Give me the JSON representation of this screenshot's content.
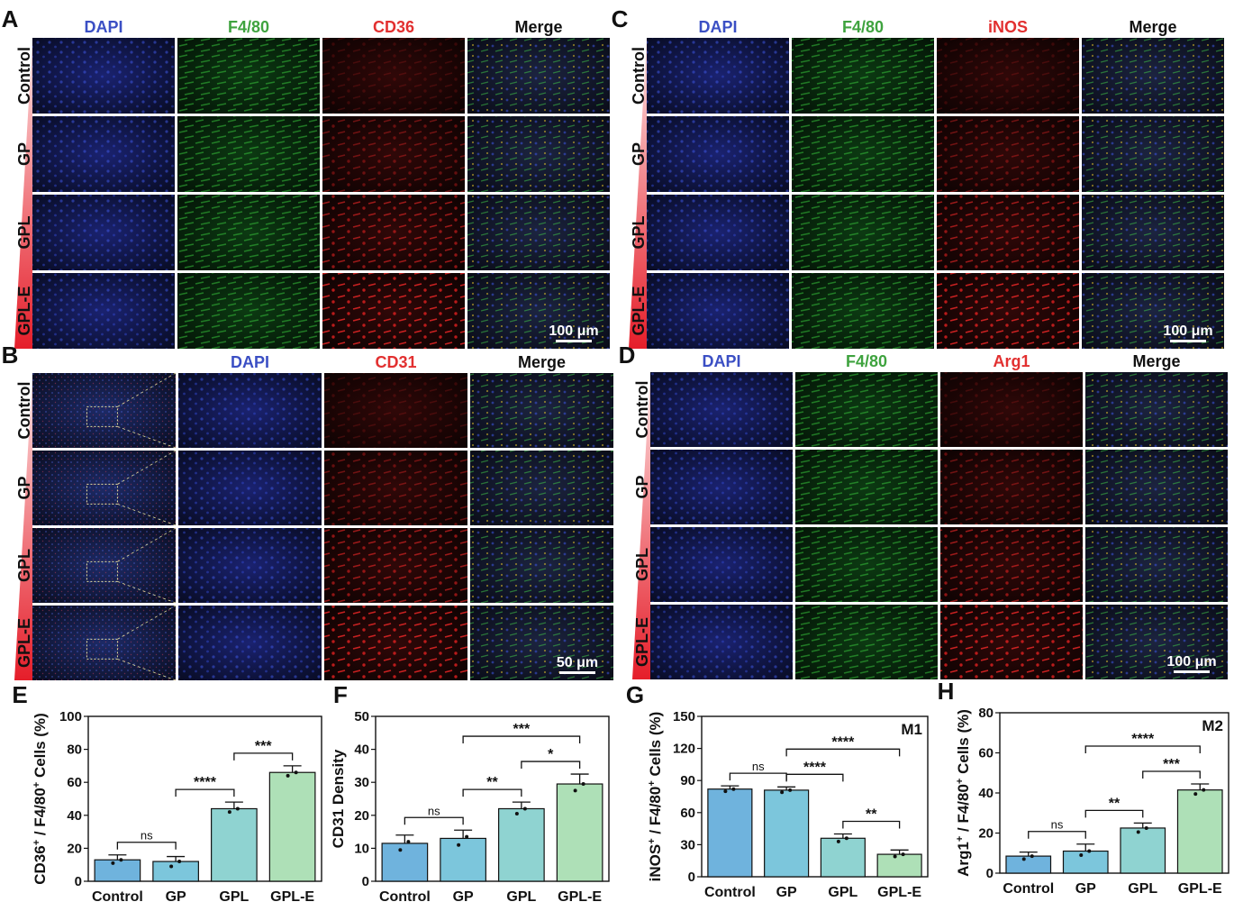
{
  "colors": {
    "dapi": "#3b4fc4",
    "f480": "#3fa33f",
    "red": "#e23030",
    "merge": "#111111",
    "bars": [
      "#6fb3dd",
      "#7cc6dc",
      "#8fd3d1",
      "#aee0b7"
    ]
  },
  "microscopy": [
    {
      "panel": "A",
      "columns": [
        "DAPI",
        "F4/80",
        "CD36",
        "Merge"
      ],
      "column_colors": [
        "dapi",
        "f480",
        "red",
        "merge"
      ],
      "rows": [
        "Control",
        "GP",
        "GPL",
        "GPL-E"
      ],
      "scale_bar": "100 μm",
      "kind": "std",
      "ch": [
        "blue",
        "green",
        "red",
        "merge"
      ]
    },
    {
      "panel": "B",
      "columns": [
        "",
        "DAPI",
        "CD31",
        "Merge"
      ],
      "column_colors": [
        "merge",
        "dapi",
        "red",
        "merge"
      ],
      "rows": [
        "Control",
        "GP",
        "GPL",
        "GPL-E"
      ],
      "scale_bar": "50 μm",
      "kind": "overview",
      "ch": [
        "overview",
        "blue",
        "red",
        "merge"
      ]
    },
    {
      "panel": "C",
      "columns": [
        "DAPI",
        "F4/80",
        "iNOS",
        "Merge"
      ],
      "column_colors": [
        "dapi",
        "f480",
        "red",
        "merge"
      ],
      "rows": [
        "Control",
        "GP",
        "GPL",
        "GPL-E"
      ],
      "scale_bar": "100 μm",
      "kind": "std",
      "ch": [
        "blue",
        "green",
        "red",
        "merge"
      ]
    },
    {
      "panel": "D",
      "columns": [
        "DAPI",
        "F4/80",
        "Arg1",
        "Merge"
      ],
      "column_colors": [
        "dapi",
        "f480",
        "red",
        "merge"
      ],
      "rows": [
        "Control",
        "GP",
        "GPL",
        "GPL-E"
      ],
      "scale_bar": "100 μm",
      "kind": "std",
      "ch": [
        "blue",
        "green",
        "red",
        "merge"
      ]
    }
  ],
  "chart_data": [
    {
      "panel": "E",
      "type": "bar",
      "categories": [
        "Control",
        "GP",
        "GPL",
        "GPL-E"
      ],
      "values": [
        13,
        12,
        44,
        66
      ],
      "errors": [
        3,
        3,
        4,
        4
      ],
      "points": [
        [
          11,
          13
        ],
        [
          9,
          12
        ],
        [
          42,
          44
        ],
        [
          64,
          66
        ]
      ],
      "ylabel_main": "CD36",
      "ylabel_rest": " / F4/80",
      "ylabel_tail": " Cells (%)",
      "ylim": [
        0,
        100
      ],
      "yticks": [
        "0",
        "20",
        "40",
        "60",
        "80",
        "100"
      ],
      "tag": "",
      "comparisons": [
        {
          "from": 0,
          "to": 1,
          "label": "ns"
        },
        {
          "from": 1,
          "to": 2,
          "label": "****"
        },
        {
          "from": 2,
          "to": 3,
          "label": "***"
        }
      ]
    },
    {
      "panel": "F",
      "type": "bar",
      "categories": [
        "Control",
        "GP",
        "GPL",
        "GPL-E"
      ],
      "values": [
        11.5,
        13,
        22,
        29.5
      ],
      "errors": [
        2.5,
        2.5,
        2,
        3
      ],
      "points": [
        [
          9.5,
          12
        ],
        [
          11,
          13.5
        ],
        [
          20.5,
          22
        ],
        [
          27.5,
          29.5
        ]
      ],
      "ylabel_main": "CD31 Density",
      "ylabel_rest": "",
      "ylabel_tail": "",
      "ylim": [
        0,
        50
      ],
      "yticks": [
        "0",
        "10",
        "20",
        "30",
        "40",
        "50"
      ],
      "tag": "",
      "comparisons": [
        {
          "from": 0,
          "to": 1,
          "label": "ns"
        },
        {
          "from": 1,
          "to": 2,
          "label": "**"
        },
        {
          "from": 2,
          "to": 3,
          "label": "*"
        },
        {
          "from": 1,
          "to": 3,
          "label": "***"
        }
      ]
    },
    {
      "panel": "G",
      "type": "bar",
      "categories": [
        "Control",
        "GP",
        "GPL",
        "GPL-E"
      ],
      "values": [
        82,
        81,
        36,
        21
      ],
      "errors": [
        3,
        3,
        4,
        4
      ],
      "points": [
        [
          80,
          82
        ],
        [
          79,
          81
        ],
        [
          33,
          36
        ],
        [
          19,
          21
        ]
      ],
      "ylabel_main": "iNOS",
      "ylabel_rest": " / F4/80",
      "ylabel_tail": " Cells (%)",
      "ylim": [
        0,
        150
      ],
      "yticks": [
        "0",
        "30",
        "60",
        "90",
        "120",
        "150"
      ],
      "tag": "M1",
      "comparisons": [
        {
          "from": 0,
          "to": 1,
          "label": "ns"
        },
        {
          "from": 1,
          "to": 2,
          "label": "****"
        },
        {
          "from": 1,
          "to": 3,
          "label": "****"
        },
        {
          "from": 2,
          "to": 3,
          "label": "**"
        }
      ]
    },
    {
      "panel": "H",
      "type": "bar",
      "categories": [
        "Control",
        "GP",
        "GPL",
        "GPL-E"
      ],
      "values": [
        8.5,
        11,
        22.5,
        41.5
      ],
      "errors": [
        2,
        3.5,
        2.5,
        3
      ],
      "points": [
        [
          7,
          8.5
        ],
        [
          9,
          11
        ],
        [
          20.5,
          22.5
        ],
        [
          39.5,
          41.5
        ]
      ],
      "ylabel_main": "Arg1",
      "ylabel_rest": " / F4/80",
      "ylabel_tail": " Cells (%)",
      "ylim": [
        0,
        80
      ],
      "yticks": [
        "0",
        "20",
        "40",
        "60",
        "80"
      ],
      "tag": "M2",
      "comparisons": [
        {
          "from": 0,
          "to": 1,
          "label": "ns"
        },
        {
          "from": 1,
          "to": 2,
          "label": "**"
        },
        {
          "from": 2,
          "to": 3,
          "label": "***"
        },
        {
          "from": 1,
          "to": 3,
          "label": "****"
        }
      ]
    }
  ]
}
